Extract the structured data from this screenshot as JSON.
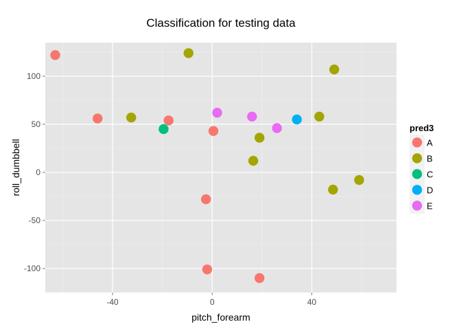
{
  "chart_data": {
    "type": "scatter",
    "title": "Classification for testing data",
    "xlabel": "pitch_forearm",
    "ylabel": "roll_dumbbell",
    "xlim": [
      -67,
      74
    ],
    "ylim": [
      -125,
      135
    ],
    "xticks": [
      -40,
      0,
      40
    ],
    "yticks": [
      -100,
      -50,
      0,
      50,
      100
    ],
    "grid": true,
    "legend": {
      "title": "pred3",
      "position": "right",
      "entries": [
        {
          "label": "A",
          "color": "#F8766D"
        },
        {
          "label": "B",
          "color": "#A3A500"
        },
        {
          "label": "C",
          "color": "#00BF7D"
        },
        {
          "label": "D",
          "color": "#00B0F6"
        },
        {
          "label": "E",
          "color": "#E76BF3"
        }
      ]
    },
    "series": [
      {
        "name": "A",
        "color": "#F8766D",
        "points": [
          {
            "x": -63,
            "y": 122
          },
          {
            "x": -46,
            "y": 56
          },
          {
            "x": -17.5,
            "y": 54
          },
          {
            "x": 0.5,
            "y": 43
          },
          {
            "x": -2.5,
            "y": -28
          },
          {
            "x": -2,
            "y": -101
          },
          {
            "x": 19,
            "y": -110
          }
        ]
      },
      {
        "name": "B",
        "color": "#A3A500",
        "points": [
          {
            "x": -9.5,
            "y": 124
          },
          {
            "x": -32.5,
            "y": 57
          },
          {
            "x": 49,
            "y": 107
          },
          {
            "x": 43,
            "y": 58
          },
          {
            "x": 19,
            "y": 36
          },
          {
            "x": 16.5,
            "y": 12
          },
          {
            "x": 48.5,
            "y": -18
          },
          {
            "x": 59,
            "y": -8
          }
        ]
      },
      {
        "name": "C",
        "color": "#00BF7D",
        "points": [
          {
            "x": -19.5,
            "y": 45
          }
        ]
      },
      {
        "name": "D",
        "color": "#00B0F6",
        "points": [
          {
            "x": 34,
            "y": 55
          }
        ]
      },
      {
        "name": "E",
        "color": "#E76BF3",
        "points": [
          {
            "x": 2,
            "y": 62
          },
          {
            "x": 16,
            "y": 58
          },
          {
            "x": 26,
            "y": 46
          }
        ]
      }
    ]
  }
}
